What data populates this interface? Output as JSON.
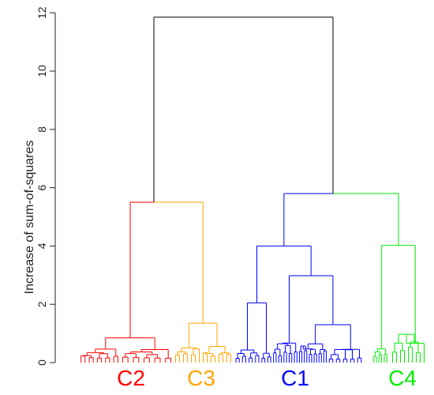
{
  "chart_data": {
    "type": "dendrogram",
    "ylabel": "Increase of sum-of-squares",
    "ylim": [
      0,
      12
    ],
    "yticks": [
      0,
      2,
      4,
      6,
      8,
      10,
      12
    ],
    "root_height": 11.85,
    "clusters": [
      {
        "label": "C2",
        "color": "#ff0000",
        "merge_height": 5.5
      },
      {
        "label": "C3",
        "color": "#ffa500",
        "merge_height": 5.5
      },
      {
        "label": "C1",
        "color": "#0000ff",
        "merge_height": 5.8
      },
      {
        "label": "C4",
        "color": "#00ee00",
        "merge_height": 5.8
      }
    ],
    "merges": [
      {
        "name": "root",
        "height": 11.85,
        "color": "#000000",
        "children": [
          "C2+C3",
          "C1+C4"
        ]
      },
      {
        "name": "C2+C3",
        "height": 5.5,
        "children": [
          "C2",
          "C3"
        ]
      },
      {
        "name": "C1+C4",
        "height": 5.8,
        "children": [
          "C1",
          "C4"
        ]
      },
      {
        "name": "C1 split",
        "height": 4.0,
        "color": "#0000ff"
      },
      {
        "name": "C1 sub",
        "height": 2.98,
        "color": "#0000ff"
      },
      {
        "name": "C1 left",
        "height": 2.05,
        "color": "#0000ff"
      },
      {
        "name": "C1 right",
        "height": 1.3,
        "color": "#0000ff"
      },
      {
        "name": "C4 split",
        "height": 4.02,
        "color": "#00ee00"
      },
      {
        "name": "C3 split",
        "height": 1.35,
        "color": "#ffa500"
      },
      {
        "name": "C2 split",
        "height": 0.85,
        "color": "#ff0000"
      }
    ]
  }
}
